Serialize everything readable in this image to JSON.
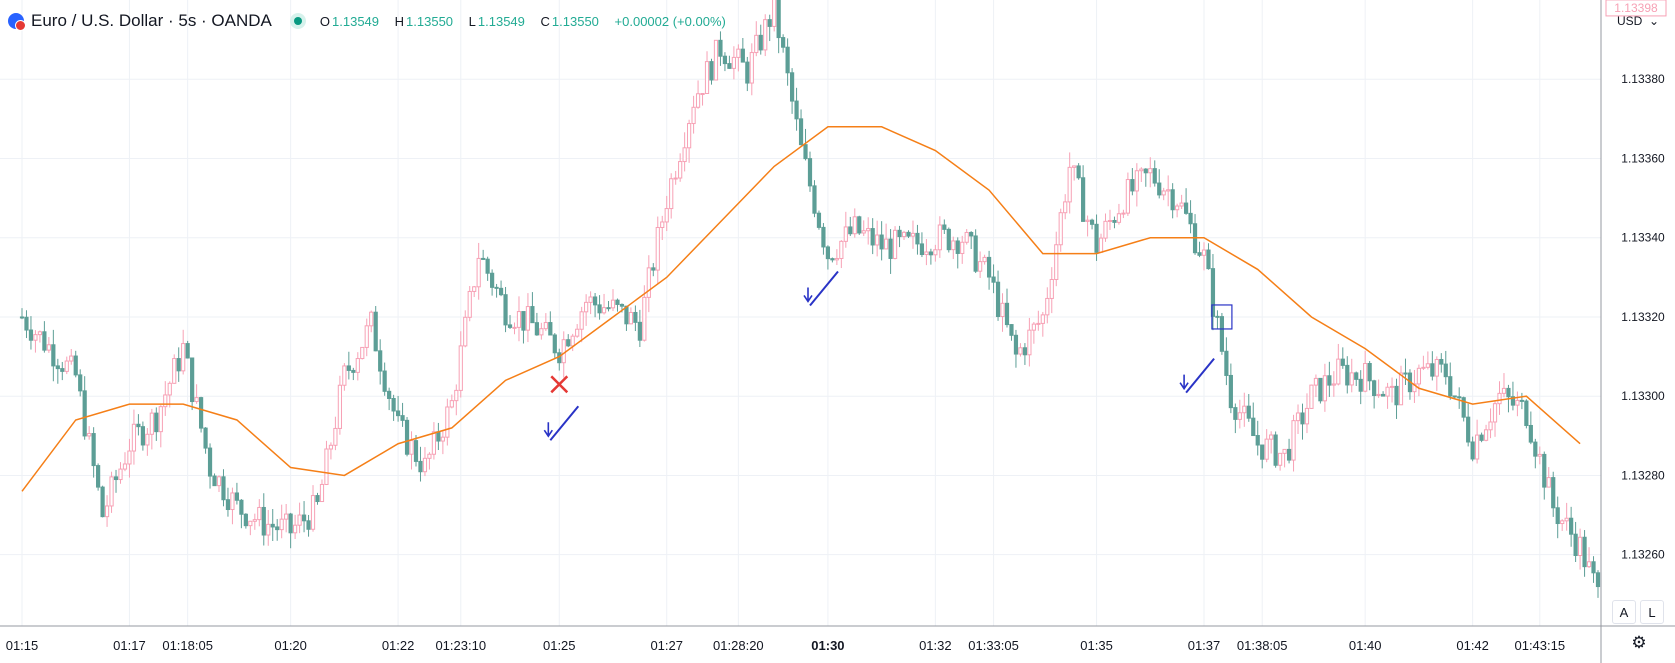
{
  "header": {
    "symbol": "Euro / U.S. Dollar · 5s · OANDA",
    "o_label": "O",
    "o_value": "1.13549",
    "h_label": "H",
    "h_value": "1.13550",
    "l_label": "L",
    "l_value": "1.13549",
    "c_label": "C",
    "c_value": "1.13550",
    "change": "+0.00002 (+0.00%)"
  },
  "price_axis": {
    "currency": "USD",
    "chevron": "⌄",
    "marker_label": "1.13398",
    "marker_color": "#f7a1b5"
  },
  "buttons": {
    "auto": "A",
    "log": "L"
  },
  "colors": {
    "up": "#f7a1b5",
    "down": "#5c9e96",
    "ma": "#f57f17",
    "annotation": "#2933c6",
    "cross": "#e53935",
    "grid": "#eef1f6"
  },
  "chart_data": {
    "type": "candlestick",
    "title": "Euro / U.S. Dollar · 5s · OANDA",
    "ylim": [
      1.13242,
      1.134
    ],
    "y_ticks": [
      1.1326,
      1.1328,
      1.133,
      1.1332,
      1.1334,
      1.1336,
      1.1338
    ],
    "x_ticks": [
      "01:15",
      "01:17",
      "01:18:05",
      "01:20",
      "01:22",
      "01:23:10",
      "01:25",
      "01:27",
      "01:28:20",
      "01:30",
      "01:32",
      "01:33:05",
      "01:35",
      "01:37",
      "01:38:05",
      "01:40",
      "01:42",
      "01:43:15"
    ],
    "x_tick_bold": "01:30",
    "approx_close_path": [
      [
        "01:15",
        1.1332
      ],
      [
        "01:16",
        1.13305
      ],
      [
        "01:16:30",
        1.1327
      ],
      [
        "01:17",
        1.13288
      ],
      [
        "01:17:30",
        1.13295
      ],
      [
        "01:18",
        1.13312
      ],
      [
        "01:18:30",
        1.13282
      ],
      [
        "01:19",
        1.13272
      ],
      [
        "01:19:30",
        1.13268
      ],
      [
        "01:20",
        1.13266
      ],
      [
        "01:20:30",
        1.13272
      ],
      [
        "01:21",
        1.13305
      ],
      [
        "01:21:30",
        1.13318
      ],
      [
        "01:22",
        1.13292
      ],
      [
        "01:22:30",
        1.13282
      ],
      [
        "01:23",
        1.13298
      ],
      [
        "01:23:30",
        1.13336
      ],
      [
        "01:24",
        1.13322
      ],
      [
        "01:24:30",
        1.13318
      ],
      [
        "01:25",
        1.13312
      ],
      [
        "01:25:30",
        1.13324
      ],
      [
        "01:26",
        1.13322
      ],
      [
        "01:26:30",
        1.13318
      ],
      [
        "01:27",
        1.1335
      ],
      [
        "01:27:30",
        1.13375
      ],
      [
        "01:28",
        1.13388
      ],
      [
        "01:28:30",
        1.13382
      ],
      [
        "01:29",
        1.13398
      ],
      [
        "01:29:30",
        1.13362
      ],
      [
        "01:30",
        1.13336
      ],
      [
        "01:30:30",
        1.13342
      ],
      [
        "01:31",
        1.13338
      ],
      [
        "01:31:30",
        1.13338
      ],
      [
        "01:32",
        1.1334
      ],
      [
        "01:32:30",
        1.1334
      ],
      [
        "01:33",
        1.1333
      ],
      [
        "01:33:30",
        1.1331
      ],
      [
        "01:34",
        1.1332
      ],
      [
        "01:34:30",
        1.13358
      ],
      [
        "01:35",
        1.13338
      ],
      [
        "01:35:30",
        1.1335
      ],
      [
        "01:36",
        1.13356
      ],
      [
        "01:36:30",
        1.1335
      ],
      [
        "01:37",
        1.13335
      ],
      [
        "01:37:30",
        1.133
      ],
      [
        "01:38",
        1.13288
      ],
      [
        "01:38:30",
        1.13285
      ],
      [
        "01:39",
        1.133
      ],
      [
        "01:39:30",
        1.13306
      ],
      [
        "01:40",
        1.13305
      ],
      [
        "01:40:30",
        1.133
      ],
      [
        "01:41",
        1.13306
      ],
      [
        "01:41:30",
        1.13306
      ],
      [
        "01:42",
        1.13288
      ],
      [
        "01:42:30",
        1.133
      ],
      [
        "01:43",
        1.13296
      ],
      [
        "01:43:30",
        1.13272
      ],
      [
        "01:44",
        1.13262
      ],
      [
        "01:44:20",
        1.1325
      ]
    ],
    "moving_average": [
      [
        "01:15",
        1.13276
      ],
      [
        "01:16",
        1.13294
      ],
      [
        "01:17",
        1.13298
      ],
      [
        "01:18",
        1.13298
      ],
      [
        "01:19",
        1.13294
      ],
      [
        "01:20",
        1.13282
      ],
      [
        "01:21",
        1.1328
      ],
      [
        "01:22",
        1.13288
      ],
      [
        "01:23",
        1.13292
      ],
      [
        "01:24",
        1.13304
      ],
      [
        "01:25",
        1.1331
      ],
      [
        "01:26",
        1.1332
      ],
      [
        "01:27",
        1.1333
      ],
      [
        "01:28",
        1.13344
      ],
      [
        "01:29",
        1.13358
      ],
      [
        "01:30",
        1.13368
      ],
      [
        "01:31",
        1.13368
      ],
      [
        "01:32",
        1.13362
      ],
      [
        "01:33",
        1.13352
      ],
      [
        "01:34",
        1.13336
      ],
      [
        "01:35",
        1.13336
      ],
      [
        "01:36",
        1.1334
      ],
      [
        "01:37",
        1.1334
      ],
      [
        "01:38",
        1.13332
      ],
      [
        "01:39",
        1.1332
      ],
      [
        "01:40",
        1.13312
      ],
      [
        "01:41",
        1.13302
      ],
      [
        "01:42",
        1.13298
      ],
      [
        "01:43",
        1.133
      ],
      [
        "01:44",
        1.13288
      ]
    ],
    "annotations": [
      {
        "type": "arrow-down",
        "time": "01:24:50",
        "price": 1.133
      },
      {
        "type": "cross",
        "time": "01:25",
        "price": 1.13303
      },
      {
        "type": "arrow-down",
        "time": "01:29:40",
        "price": 1.13334
      },
      {
        "type": "arrow-down",
        "time": "01:36:40",
        "price": 1.13312
      },
      {
        "type": "box",
        "time": "01:37:20",
        "price": 1.1332
      }
    ]
  }
}
